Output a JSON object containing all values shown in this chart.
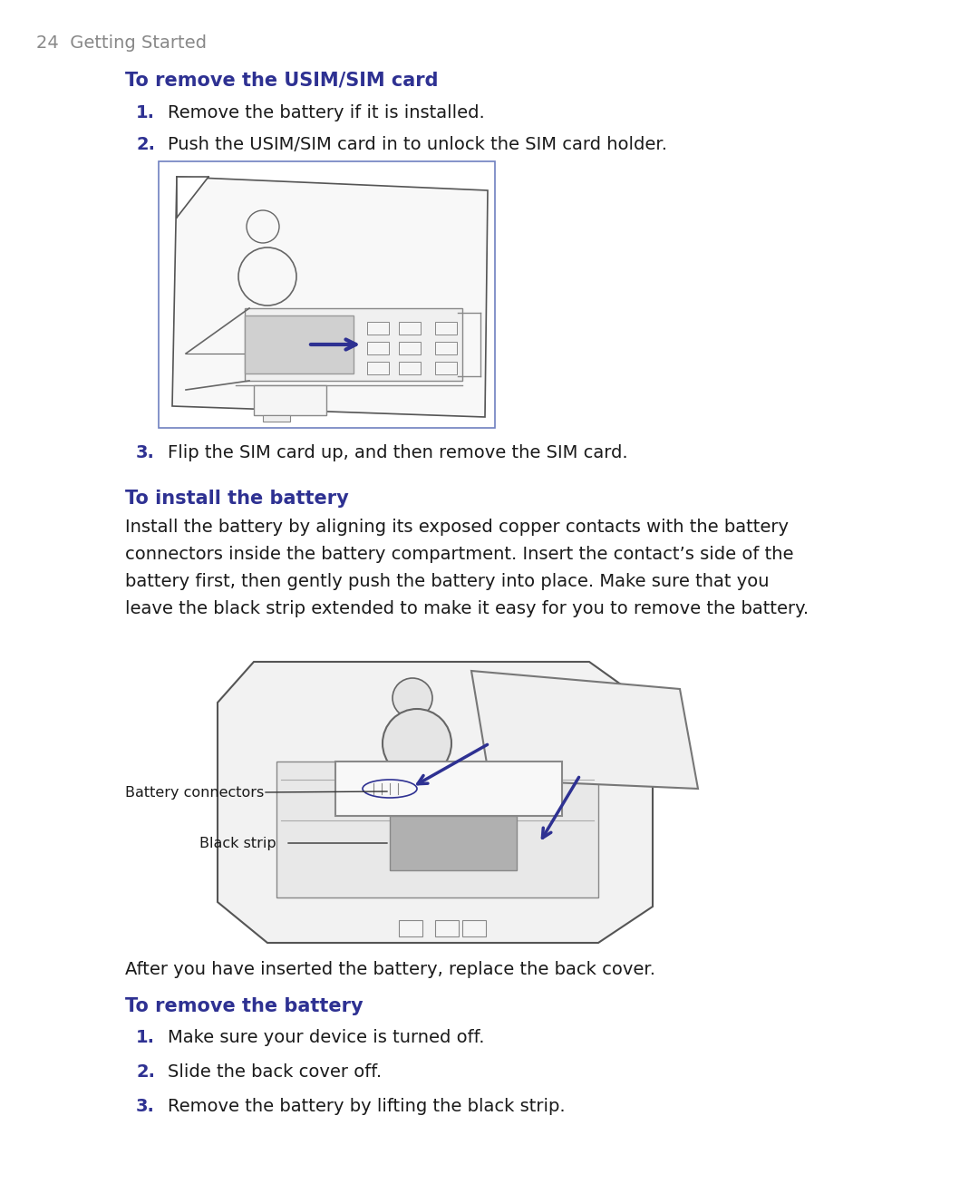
{
  "bg_color": "#ffffff",
  "page_header": "24  Getting Started",
  "header_color": "#888888",
  "heading_color": "#2e3192",
  "body_color": "#1a1a1a",
  "numbered_color": "#2e3192",
  "heading1": "To remove the USIM/SIM card",
  "heading2": "To install the battery",
  "heading3": "To remove the battery",
  "item1_1": "Remove the battery if it is installed.",
  "item1_2": "Push the USIM/SIM card in to unlock the SIM card holder.",
  "item1_3": "Flip the SIM card up, and then remove the SIM card.",
  "body2_lines": [
    "Install the battery by aligning its exposed copper contacts with the battery",
    "connectors inside the battery compartment. Insert the contact’s side of the",
    "battery first, then gently push the battery into place. Make sure that you",
    "leave the black strip extended to make it easy for you to remove the battery."
  ],
  "after_text": "After you have inserted the battery, replace the back cover.",
  "item3_1": "Make sure your device is turned off.",
  "item3_2": "Slide the back cover off.",
  "item3_3": "Remove the battery by lifting the black strip.",
  "label_connectors": "Battery connectors",
  "label_strip": "Black strip"
}
